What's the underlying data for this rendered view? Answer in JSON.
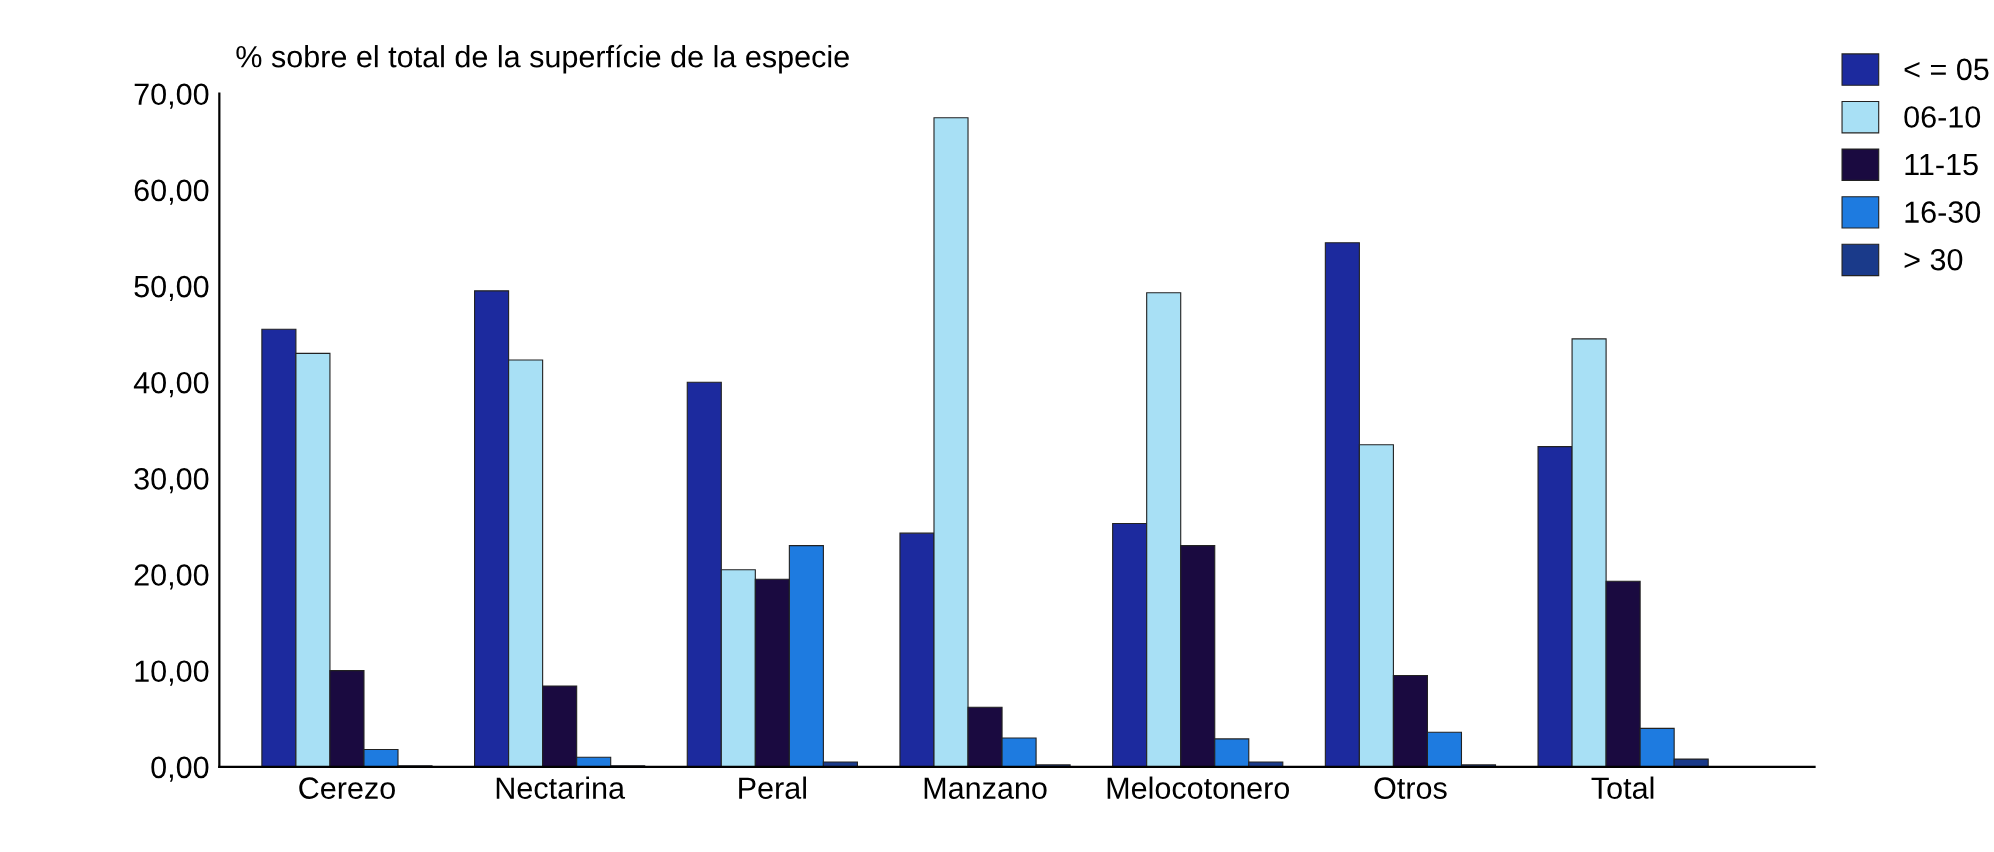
{
  "chart_data": {
    "type": "bar",
    "ylabel": "% sobre el total de la superfície de la especie",
    "categories": [
      "Cerezo",
      "Nectarina",
      "Peral",
      "Manzano",
      "Melocotonero",
      "Otros",
      "Total"
    ],
    "series": [
      {
        "name": "< = 05",
        "color": "#1c2a9e",
        "values": [
          45.5,
          49.5,
          40.0,
          24.3,
          25.3,
          54.5,
          33.3
        ]
      },
      {
        "name": "06-10",
        "color": "#a8e0f5",
        "values": [
          43.0,
          42.3,
          20.5,
          67.5,
          49.3,
          33.5,
          44.5
        ]
      },
      {
        "name": "11-15",
        "color": "#1a0a40",
        "values": [
          10.0,
          8.4,
          19.5,
          6.2,
          23.0,
          9.5,
          19.3
        ]
      },
      {
        "name": "16-30",
        "color": "#1e7be0",
        "values": [
          1.8,
          1.0,
          23.0,
          3.0,
          2.9,
          3.6,
          4.0
        ]
      },
      {
        "name": "> 30",
        "color": "#1a3a8a",
        "values": [
          0.1,
          0.1,
          0.5,
          0.2,
          0.5,
          0.2,
          0.8
        ]
      }
    ],
    "ylim": [
      0,
      70
    ],
    "yticks": [
      {
        "value": 0,
        "label": "0,00"
      },
      {
        "value": 10,
        "label": "10,00"
      },
      {
        "value": 20,
        "label": "20,00"
      },
      {
        "value": 30,
        "label": "30,00"
      },
      {
        "value": 40,
        "label": "40,00"
      },
      {
        "value": 50,
        "label": "50,00"
      },
      {
        "value": 60,
        "label": "60,00"
      },
      {
        "value": 70,
        "label": "70,00"
      }
    ],
    "legend": "top right",
    "grid": false
  }
}
